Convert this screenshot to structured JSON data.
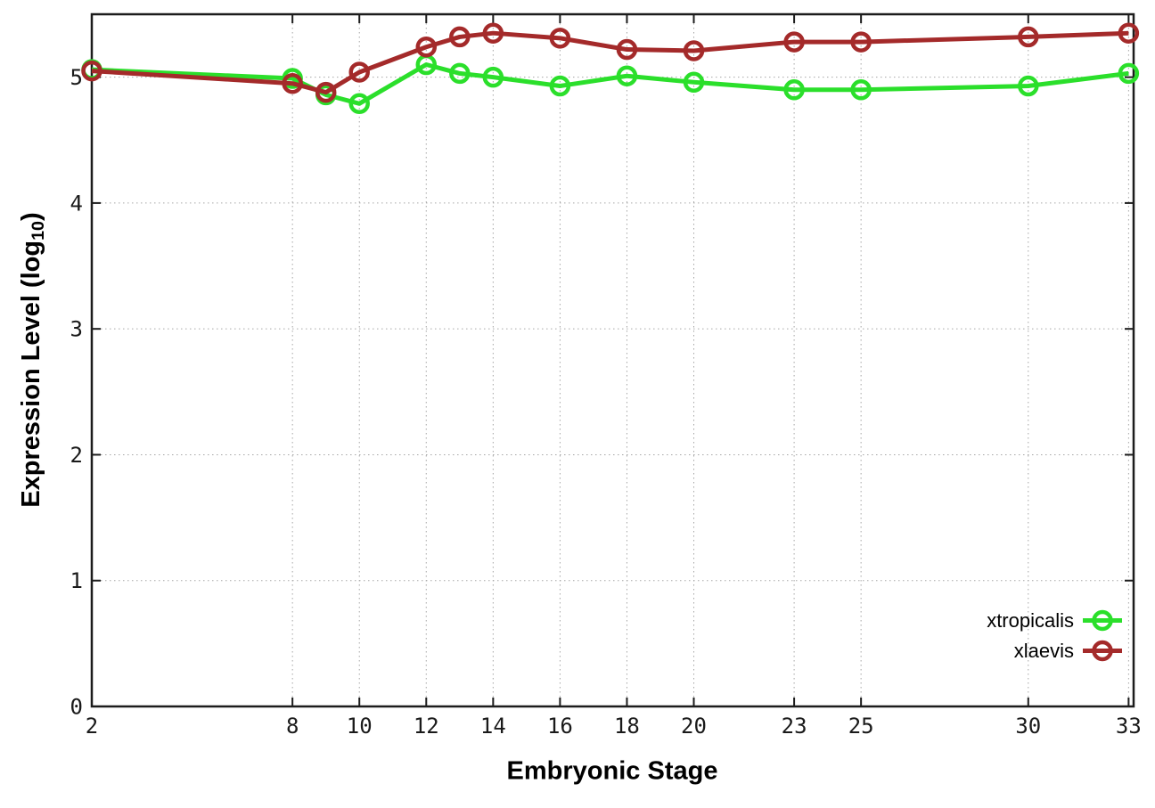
{
  "chart_data": {
    "type": "line",
    "xlabel": "Embryonic Stage",
    "ylabel": {
      "text": "Expression Level (log",
      "sub": "10",
      "close": ")"
    },
    "x": [
      2,
      8,
      9,
      10,
      12,
      13,
      14,
      16,
      18,
      20,
      23,
      25,
      30,
      33
    ],
    "xtick_values": [
      2,
      8,
      10,
      12,
      14,
      16,
      18,
      20,
      23,
      25,
      30,
      33
    ],
    "xtick_labels": [
      "2",
      "8",
      "10",
      "12",
      "14",
      "16",
      "18",
      "20",
      "23",
      "25",
      "30",
      "33"
    ],
    "ytick_values": [
      0,
      1,
      2,
      3,
      4,
      5
    ],
    "ytick_labels": [
      "0",
      "1",
      "2",
      "3",
      "4",
      "5"
    ],
    "xlim": [
      2,
      33.15
    ],
    "ylim": [
      0,
      5.5
    ],
    "grid": true,
    "legend": {
      "position": "bottom-right"
    },
    "series": [
      {
        "name": "xtropicalis",
        "color": "#2bdf2b",
        "marker": "open-circle",
        "values": [
          5.06,
          4.99,
          4.86,
          4.79,
          5.1,
          5.03,
          5.0,
          4.93,
          5.01,
          4.96,
          4.9,
          4.9,
          4.93,
          5.03
        ]
      },
      {
        "name": "xlaevis",
        "color": "#a42a2a",
        "marker": "open-circle",
        "values": [
          5.05,
          4.95,
          4.88,
          5.04,
          5.24,
          5.32,
          5.35,
          5.31,
          5.22,
          5.21,
          5.28,
          5.28,
          5.32,
          5.35
        ]
      }
    ],
    "colors": {
      "grid": "#a6a6a6",
      "border": "#1c1c1c",
      "tick_text": "#1a1a1a"
    }
  }
}
